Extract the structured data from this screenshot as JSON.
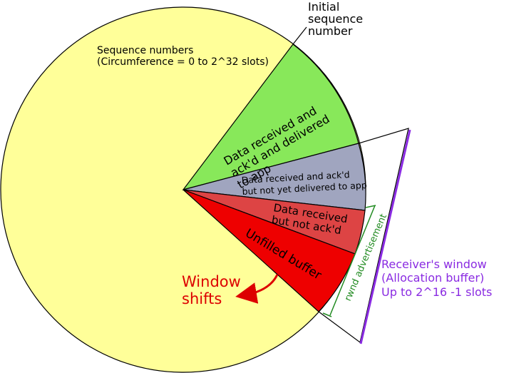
{
  "labels": {
    "initial_sequence": [
      "Initial",
      "sequence",
      "number"
    ],
    "sequence_numbers": [
      "Sequence numbers",
      "(Circumference = 0 to 2^32 slots)"
    ],
    "delivered": [
      "Data received and",
      "ack'd and delivered",
      "to app"
    ],
    "not_delivered": [
      "Data received and ack'd",
      "but not yet delivered to app"
    ],
    "not_acked": [
      "Data received",
      "but not ack'd"
    ],
    "unfilled": "Unfilled buffer",
    "window_shifts": [
      "Window",
      "shifts"
    ],
    "rwnd": "rwnd advertisement",
    "receiver_window": [
      "Receiver's window",
      "(Allocation buffer)",
      "Up to 2^16 -1 slots"
    ]
  },
  "colors": {
    "sequence_space": "#ffff99",
    "delivered": "#88e85a",
    "not_delivered": "#a0a5bf",
    "not_acked": "#dd4444",
    "unfilled": "#ee0000",
    "window_shifts_text": "#dd0000",
    "rwnd": "#228b22",
    "receiver_window": "#8a2be2"
  }
}
